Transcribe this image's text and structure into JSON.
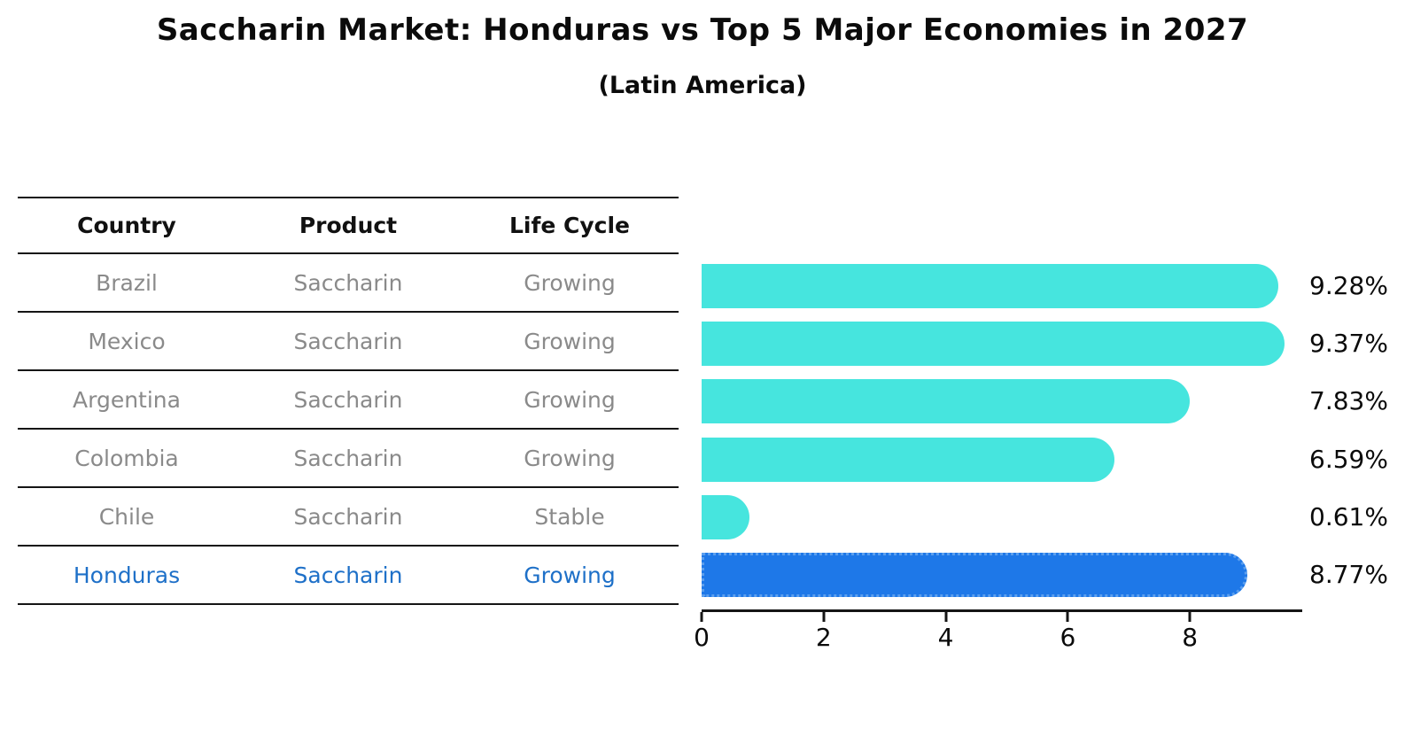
{
  "chart_data": {
    "type": "bar",
    "orientation": "horizontal",
    "title": "Saccharin Market: Honduras vs Top 5 Major Economies in 2027",
    "subtitle": "(Latin America)",
    "categories": [
      "Brazil",
      "Mexico",
      "Argentina",
      "Colombia",
      "Chile",
      "Honduras"
    ],
    "values": [
      9.28,
      9.37,
      7.83,
      6.59,
      0.61,
      8.77
    ],
    "value_labels": [
      "9.28%",
      "9.37%",
      "7.83%",
      "6.59%",
      "0.61%",
      "8.77%"
    ],
    "x_ticks": [
      0,
      2,
      4,
      6,
      8
    ],
    "xlim": [
      0,
      9.84
    ],
    "highlight_index": 5,
    "grid": false,
    "xlabel": "",
    "ylabel": ""
  },
  "table": {
    "headers": [
      "Country",
      "Product",
      "Life Cycle"
    ],
    "rows": [
      {
        "country": "Brazil",
        "product": "Saccharin",
        "life_cycle": "Growing",
        "highlight": false
      },
      {
        "country": "Mexico",
        "product": "Saccharin",
        "life_cycle": "Growing",
        "highlight": false
      },
      {
        "country": "Argentina",
        "product": "Saccharin",
        "life_cycle": "Growing",
        "highlight": false
      },
      {
        "country": "Colombia",
        "product": "Saccharin",
        "life_cycle": "Growing",
        "highlight": false
      },
      {
        "country": "Chile",
        "product": "Saccharin",
        "life_cycle": "Stable",
        "highlight": false
      },
      {
        "country": "Honduras",
        "product": "Saccharin",
        "life_cycle": "Growing",
        "highlight": true
      }
    ]
  },
  "colors": {
    "bar": "#46E5DE",
    "highlight_bar": "#1E78E8",
    "highlight_border": "#5C9FEE",
    "highlight_text": "#1E70C8",
    "cell_text": "#8A8A8A",
    "axis": "#151515"
  }
}
